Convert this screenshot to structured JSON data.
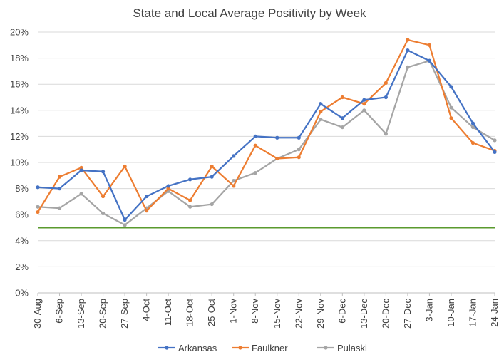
{
  "chart_data": {
    "type": "line",
    "title": "State and Local Average Positivity by Week",
    "xlabel": "",
    "ylabel": "",
    "ylim": [
      0,
      0.2
    ],
    "ytick_step": 0.02,
    "yticks": [
      "0%",
      "2%",
      "4%",
      "6%",
      "8%",
      "10%",
      "12%",
      "14%",
      "16%",
      "18%",
      "20%"
    ],
    "categories": [
      "30-Aug",
      "6-Sep",
      "13-Sep",
      "20-Sep",
      "27-Sep",
      "4-Oct",
      "11-Oct",
      "18-Oct",
      "25-Oct",
      "1-Nov",
      "8-Nov",
      "15-Nov",
      "22-Nov",
      "29-Nov",
      "6-Dec",
      "13-Dec",
      "20-Dec",
      "27-Dec",
      "3-Jan",
      "10-Jan",
      "17-Jan",
      "24-Jan"
    ],
    "series": [
      {
        "name": "Arkansas",
        "color": "#4472c4",
        "values": [
          0.081,
          0.08,
          0.094,
          0.093,
          0.056,
          0.074,
          0.082,
          0.087,
          0.089,
          0.105,
          0.12,
          0.119,
          0.119,
          0.145,
          0.134,
          0.148,
          0.15,
          0.186,
          0.178,
          0.158,
          0.13,
          0.108
        ]
      },
      {
        "name": "Faulkner",
        "color": "#ed7d31",
        "values": [
          0.062,
          0.089,
          0.096,
          0.074,
          0.097,
          0.063,
          0.08,
          0.071,
          0.097,
          0.082,
          0.113,
          0.103,
          0.104,
          0.139,
          0.15,
          0.145,
          0.161,
          0.194,
          0.19,
          0.134,
          0.115,
          0.109
        ]
      },
      {
        "name": "Pulaski",
        "color": "#a5a5a5",
        "values": [
          0.066,
          0.065,
          0.076,
          0.061,
          0.052,
          0.065,
          0.078,
          0.066,
          0.068,
          0.086,
          0.092,
          0.103,
          0.11,
          0.133,
          0.127,
          0.14,
          0.122,
          0.173,
          0.178,
          0.142,
          0.127,
          0.117
        ]
      }
    ],
    "reference_line": {
      "value": 0.05,
      "color": "#5a9a2e"
    },
    "legend_position": "bottom"
  }
}
